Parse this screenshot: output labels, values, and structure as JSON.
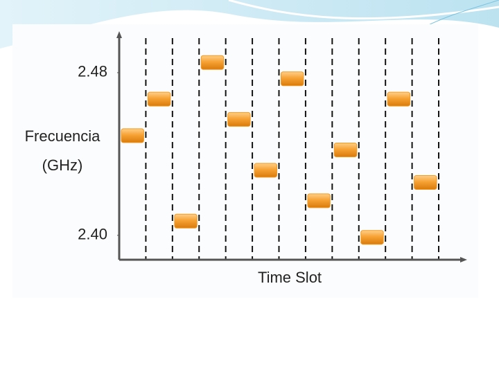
{
  "chart_data": {
    "type": "bar",
    "y_label": [
      "Frecuencia",
      "(GHz)"
    ],
    "x_label": "Time Slot",
    "categories": [
      null,
      null,
      null,
      null,
      null,
      null,
      null,
      null,
      null,
      null,
      null,
      null
    ],
    "values": [
      2.449,
      2.467,
      2.407,
      2.485,
      2.457,
      2.432,
      2.477,
      2.417,
      2.442,
      2.399,
      2.467,
      2.426
    ],
    "color": "#f39a1e",
    "ylim": [
      2.388,
      2.497
    ],
    "yticks": [
      {
        "value": 2.4,
        "label": "2.40"
      },
      2.48
    ]
  }
}
